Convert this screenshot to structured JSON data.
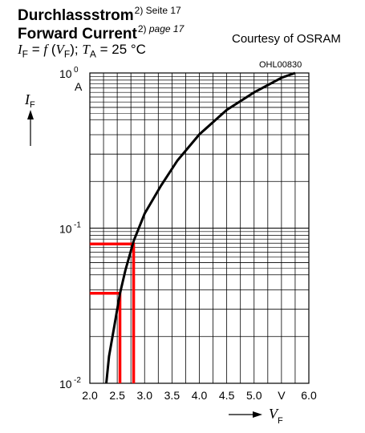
{
  "header": {
    "title_de": "Durchlassstrom",
    "title_de_note": "2) Seite 17",
    "title_en": "Forward Current",
    "title_en_note": "2)",
    "title_en_page": "page 17",
    "formula": {
      "lhs": "I",
      "lhs_sub": "F",
      "eq": " = ",
      "fn": "f",
      "arg": "V",
      "arg_sub": "F",
      "sep": "; ",
      "t": "T",
      "t_sub": "A",
      "tval": " = 25 °C"
    },
    "courtesy": "Courtesy of OSRAM",
    "code": "OHL00830"
  },
  "chart_data": {
    "type": "line",
    "title": "",
    "xlabel": "V_F",
    "ylabel": "I_F",
    "x_unit": "V",
    "y_unit": "A",
    "xlim": [
      2.0,
      6.0
    ],
    "ylim": [
      0.01,
      1
    ],
    "y_scale": "log",
    "grid": true,
    "x_ticks": [
      "2.0",
      "2.5",
      "3.0",
      "3.5",
      "4.0",
      "4.5",
      "5.0",
      "6.0"
    ],
    "y_ticks": [
      {
        "base": "10",
        "exp": "-2",
        "value": 0.01
      },
      {
        "base": "10",
        "exp": "-1",
        "value": 0.1
      },
      {
        "base": "10",
        "exp": "0",
        "value": 1
      }
    ],
    "series": [
      {
        "x": [
          2.3,
          2.35,
          2.45,
          2.55,
          2.65,
          2.8,
          3.0,
          3.3,
          3.6,
          4.0,
          4.5,
          5.0,
          5.5,
          5.75
        ],
        "y": [
          0.01,
          0.0149,
          0.0237,
          0.0378,
          0.0537,
          0.0826,
          0.124,
          0.188,
          0.273,
          0.402,
          0.578,
          0.75,
          0.931,
          1.0
        ]
      }
    ],
    "annotations": [
      {
        "color": "#ff0000",
        "x": 2.55,
        "y": 0.038
      },
      {
        "color": "#ff0000",
        "x": 2.8,
        "y": 0.079
      }
    ],
    "colors": {
      "curve": "#000000",
      "grid": "#000000",
      "highlight": "#ff0000"
    }
  }
}
